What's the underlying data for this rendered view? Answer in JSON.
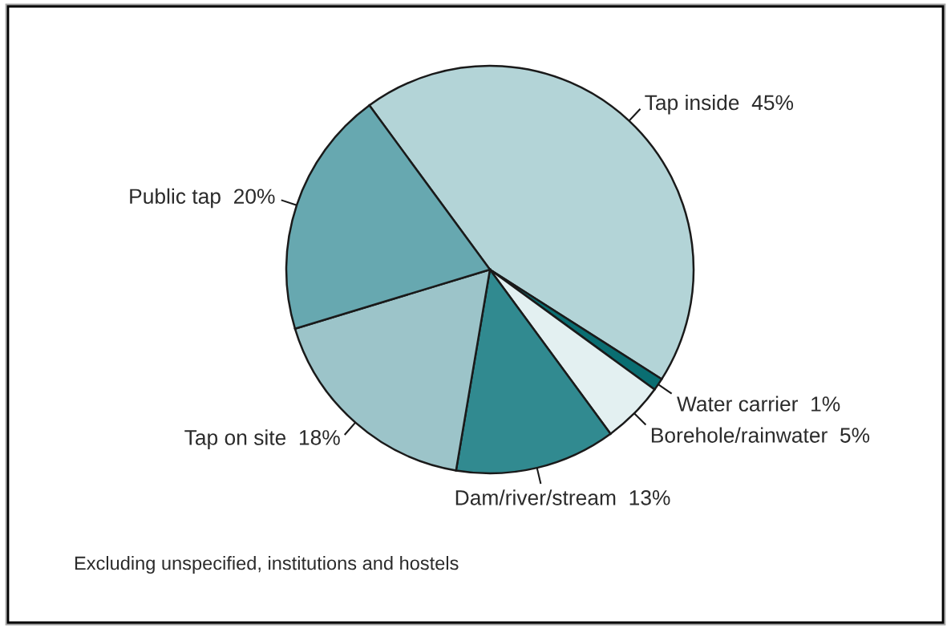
{
  "chart_data": {
    "type": "pie",
    "categories": [
      "Tap inside",
      "Water carrier",
      "Borehole/rainwater",
      "Dam/river/stream",
      "Tap on site",
      "Public tap"
    ],
    "values": [
      45,
      1,
      5,
      13,
      18,
      20
    ],
    "value_labels": [
      "45%",
      "1%",
      "5%",
      "13%",
      "18%",
      "20%"
    ],
    "colors": [
      "#b3d4d7",
      "#0a6e72",
      "#e3f0f1",
      "#318a90",
      "#9cc4c9",
      "#67a8b0"
    ],
    "annotations": [
      "Excluding unspecified, institutions and hostels"
    ]
  }
}
